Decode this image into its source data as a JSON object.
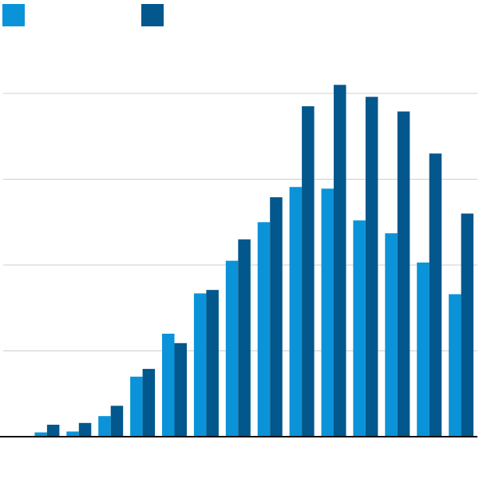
{
  "chart_data": {
    "type": "bar",
    "title": "",
    "xlabel": "",
    "ylabel": "",
    "ylim": [
      0,
      40
    ],
    "grid": true,
    "legend": "top-left",
    "categories": [
      "",
      "",
      "",
      "",
      "",
      "",
      "",
      "",
      "",
      "",
      "",
      "",
      "",
      "",
      ""
    ],
    "series": [
      {
        "color": "#0a93d8",
        "values": [
          0.0,
          0.5,
          0.6,
          2.4,
          7.0,
          12.0,
          16.7,
          20.5,
          25.0,
          29.1,
          28.9,
          25.2,
          23.7,
          20.3,
          16.6
        ]
      },
      {
        "color": "#02578c",
        "values": [
          0.0,
          1.4,
          1.6,
          3.6,
          7.9,
          10.9,
          17.1,
          23.0,
          27.9,
          38.5,
          41.0,
          39.6,
          37.9,
          33.0,
          26.0
        ]
      }
    ]
  }
}
